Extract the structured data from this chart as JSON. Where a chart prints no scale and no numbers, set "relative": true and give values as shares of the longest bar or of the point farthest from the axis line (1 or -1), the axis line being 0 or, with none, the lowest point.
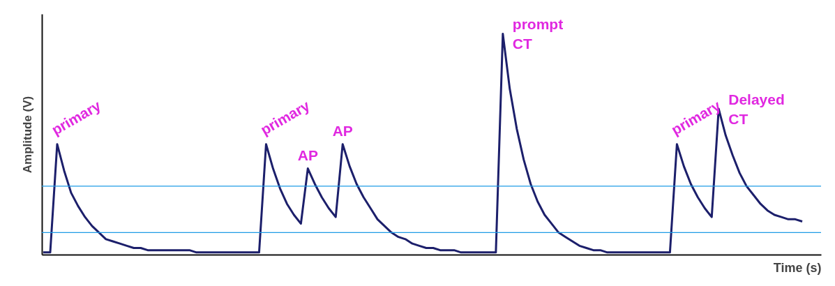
{
  "chart_data": {
    "type": "line",
    "relative": true,
    "xlabel": "Time (s)",
    "ylabel": "Amplitude (V)",
    "color": "#1c1f6b",
    "categories": [
      null,
      null,
      null,
      null,
      null,
      null,
      null,
      null,
      null,
      null,
      null,
      null,
      null,
      null,
      null,
      null,
      null,
      null,
      null,
      null,
      null,
      null,
      null,
      null,
      null,
      null,
      null,
      null,
      null,
      null,
      null,
      null,
      null,
      null,
      null,
      null,
      null,
      null,
      null,
      null,
      null,
      null,
      null,
      null,
      null,
      null,
      null,
      null,
      null,
      null,
      null,
      null,
      null,
      null,
      null,
      null,
      null,
      null,
      null,
      null,
      null,
      null,
      null,
      null,
      null,
      null,
      null,
      null,
      null,
      null,
      null,
      null,
      null,
      null,
      null,
      null,
      null,
      null,
      null,
      null,
      null,
      null,
      null,
      null,
      null,
      null,
      null,
      null,
      null,
      null,
      null,
      null,
      null,
      null,
      null,
      null,
      null,
      null,
      null,
      null,
      null,
      null,
      null,
      null,
      null,
      null,
      null,
      null,
      null,
      null
    ],
    "values": [
      0.01,
      0.01,
      0.5,
      0.38,
      0.28,
      0.22,
      0.17,
      0.13,
      0.1,
      0.07,
      0.06,
      0.05,
      0.04,
      0.03,
      0.03,
      0.02,
      0.02,
      0.02,
      0.02,
      0.02,
      0.02,
      0.02,
      0.01,
      0.01,
      0.01,
      0.01,
      0.01,
      0.01,
      0.01,
      0.01,
      0.01,
      0.01,
      0.5,
      0.39,
      0.3,
      0.23,
      0.18,
      0.14,
      0.39,
      0.32,
      0.26,
      0.21,
      0.17,
      0.5,
      0.4,
      0.32,
      0.26,
      0.21,
      0.16,
      0.13,
      0.1,
      0.08,
      0.07,
      0.05,
      0.04,
      0.03,
      0.03,
      0.02,
      0.02,
      0.02,
      0.01,
      0.01,
      0.01,
      0.01,
      0.01,
      0.01,
      1.0,
      0.75,
      0.57,
      0.43,
      0.32,
      0.24,
      0.18,
      0.14,
      0.1,
      0.08,
      0.06,
      0.04,
      0.03,
      0.02,
      0.02,
      0.01,
      0.01,
      0.01,
      0.01,
      0.01,
      0.01,
      0.01,
      0.01,
      0.01,
      0.01,
      0.5,
      0.4,
      0.32,
      0.26,
      0.21,
      0.17,
      0.66,
      0.54,
      0.45,
      0.37,
      0.31,
      0.27,
      0.23,
      0.2,
      0.18,
      0.17,
      0.16,
      0.16,
      0.15
    ],
    "ref_lines": [
      {
        "axis": "y",
        "value": 0.31,
        "color": "#1e9be6"
      },
      {
        "axis": "y",
        "value": 0.1,
        "color": "#1e9be6"
      }
    ],
    "annotations": [
      "primary",
      "primary",
      "AP",
      "AP",
      "prompt\nCT",
      "primary",
      "Delayed\nCT"
    ]
  }
}
